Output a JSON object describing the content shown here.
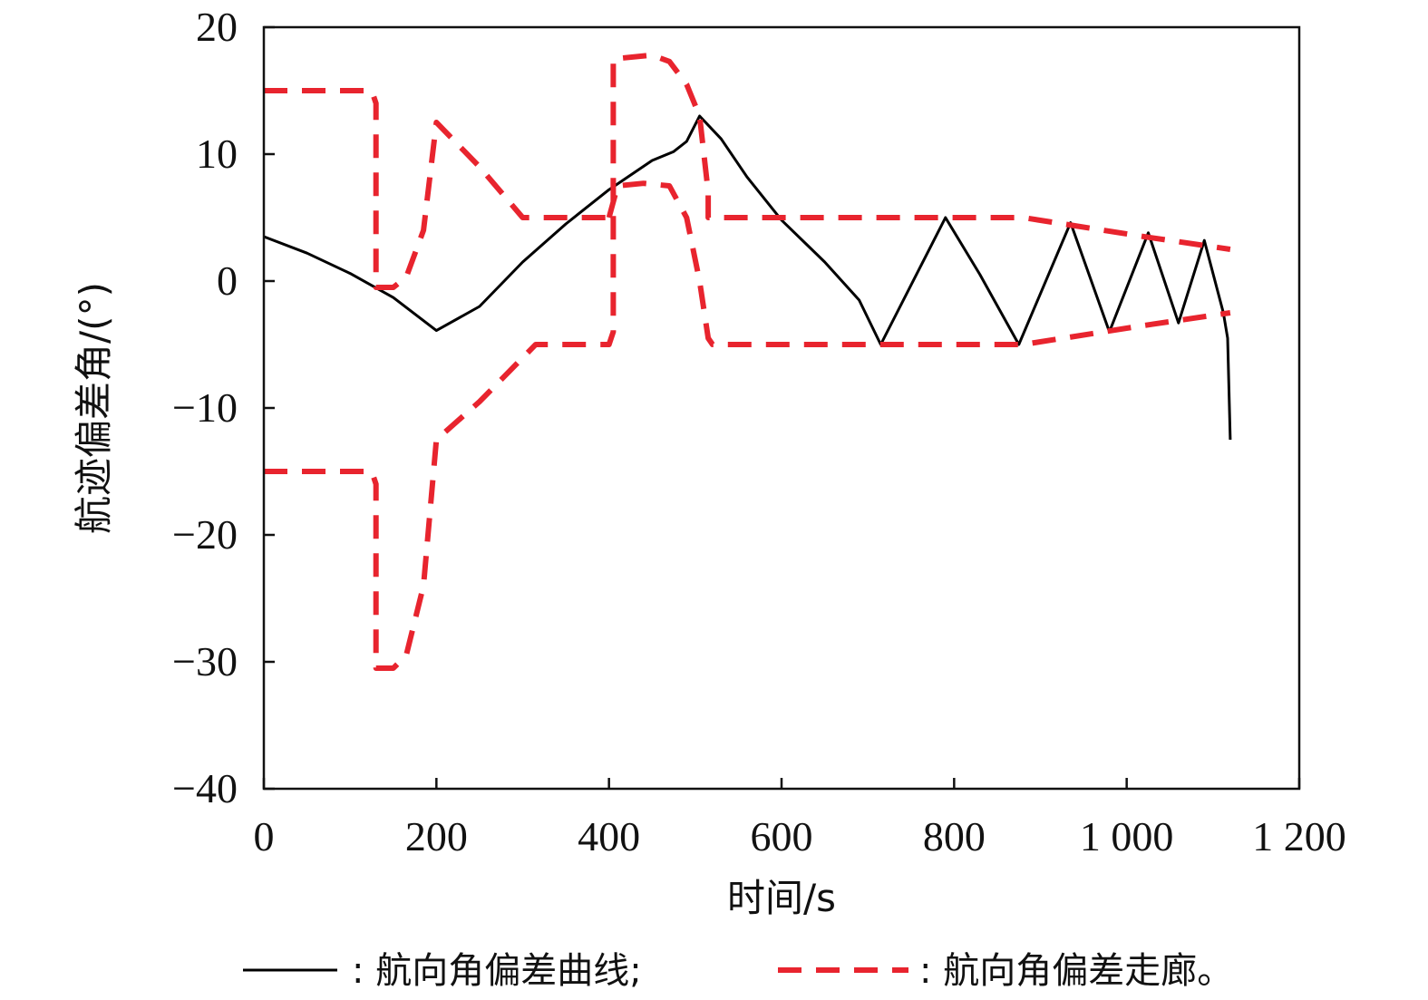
{
  "chart_data": {
    "type": "line",
    "xlabel": "时间/s",
    "ylabel": "航迹偏差角/(°)",
    "xlim": [
      0,
      1200
    ],
    "ylim": [
      -40,
      20
    ],
    "x_ticks": [
      0,
      200,
      400,
      600,
      800,
      1000,
      1200
    ],
    "x_tick_labels": [
      "0",
      "200",
      "400",
      "600",
      "800",
      "1 000",
      "1 200"
    ],
    "y_ticks": [
      20,
      10,
      0,
      -10,
      -20,
      -30,
      -40
    ],
    "y_tick_labels": [
      "20",
      "10",
      "0",
      "−10",
      "−20",
      "−30",
      "−40"
    ],
    "grid": false,
    "legend": {
      "placement": "bottom",
      "entries": [
        {
          "series": "curve",
          "label": ": 航向角偏差曲线;"
        },
        {
          "series": "corridor",
          "label": ": 航向角偏差走廊。"
        }
      ]
    },
    "colors": {
      "curve": "#000000",
      "corridor": "#e8242e"
    },
    "series": [
      {
        "id": "curve",
        "style": "solid",
        "points": [
          [
            0,
            3.5
          ],
          [
            50,
            2.2
          ],
          [
            100,
            0.6
          ],
          [
            150,
            -1.3
          ],
          [
            200,
            -3.9
          ],
          [
            250,
            -2.0
          ],
          [
            300,
            1.5
          ],
          [
            350,
            4.5
          ],
          [
            400,
            7.2
          ],
          [
            450,
            9.5
          ],
          [
            475,
            10.2
          ],
          [
            490,
            11.0
          ],
          [
            505,
            13.0
          ],
          [
            530,
            11.2
          ],
          [
            560,
            8.2
          ],
          [
            600,
            4.8
          ],
          [
            650,
            1.5
          ],
          [
            690,
            -1.5
          ],
          [
            715,
            -5.0
          ],
          [
            790,
            5.0
          ],
          [
            830,
            0.5
          ],
          [
            875,
            -5.0
          ],
          [
            935,
            4.6
          ],
          [
            980,
            -4.0
          ],
          [
            1025,
            3.8
          ],
          [
            1060,
            -3.3
          ],
          [
            1090,
            3.2
          ],
          [
            1112,
            -2.5
          ],
          [
            1117,
            -4.5
          ],
          [
            1120,
            -12.5
          ]
        ]
      },
      {
        "id": "corridor",
        "style": "dashed",
        "segments": [
          [
            [
              0,
              15
            ],
            [
              125,
              15
            ],
            [
              130,
              14
            ],
            [
              130,
              -0.5
            ],
            [
              150,
              -0.5
            ],
            [
              165,
              0.3
            ],
            [
              185,
              4
            ],
            [
              200,
              12.5
            ],
            [
              250,
              9
            ],
            [
              300,
              5
            ],
            [
              400,
              5
            ]
          ],
          [
            [
              0,
              -15
            ],
            [
              125,
              -15
            ],
            [
              130,
              -16
            ],
            [
              130,
              -30.5
            ],
            [
              150,
              -30.5
            ],
            [
              165,
              -29.5
            ],
            [
              185,
              -24
            ],
            [
              200,
              -12.5
            ],
            [
              250,
              -9.5
            ],
            [
              315,
              -5
            ],
            [
              400,
              -5
            ],
            [
              405,
              -4
            ],
            [
              405,
              17.5
            ],
            [
              450,
              17.8
            ],
            [
              470,
              17.3
            ],
            [
              490,
              15.5
            ],
            [
              505,
              13
            ],
            [
              515,
              7
            ],
            [
              515,
              5
            ],
            [
              800,
              5
            ],
            [
              880,
              5
            ],
            [
              1020,
              3.5
            ],
            [
              1120,
              2.5
            ]
          ],
          [
            [
              400,
              5
            ],
            [
              410,
              7.5
            ],
            [
              440,
              7.7
            ],
            [
              470,
              7.5
            ],
            [
              490,
              5
            ],
            [
              505,
              0
            ],
            [
              515,
              -4.5
            ],
            [
              520,
              -5
            ],
            [
              880,
              -5
            ],
            [
              1020,
              -3.5
            ],
            [
              1120,
              -2.5
            ]
          ]
        ]
      }
    ]
  }
}
